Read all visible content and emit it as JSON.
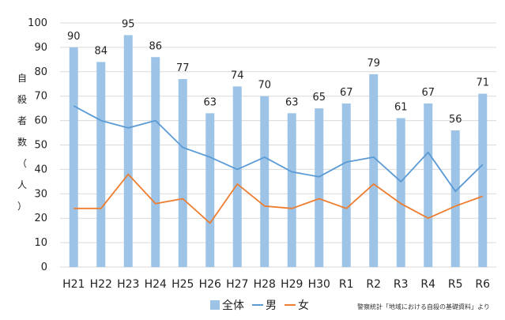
{
  "chart_data": {
    "type": "bar",
    "categories": [
      "H21",
      "H22",
      "H23",
      "H24",
      "H25",
      "H26",
      "H27",
      "H28",
      "H29",
      "H30",
      "R1",
      "R2",
      "R3",
      "R4",
      "R5",
      "R6"
    ],
    "series": [
      {
        "name": "全体",
        "kind": "bar",
        "color": "#9dc3e6",
        "values": [
          90,
          84,
          95,
          86,
          77,
          63,
          74,
          70,
          63,
          65,
          67,
          79,
          61,
          67,
          56,
          71
        ]
      },
      {
        "name": "男",
        "kind": "line",
        "color": "#5b9bd5",
        "values": [
          66,
          60,
          57,
          60,
          49,
          45,
          40,
          45,
          39,
          37,
          43,
          45,
          35,
          47,
          31,
          42
        ]
      },
      {
        "name": "女",
        "kind": "line",
        "color": "#ed7d31",
        "values": [
          24,
          24,
          38,
          26,
          28,
          18,
          34,
          25,
          24,
          28,
          24,
          34,
          26,
          20,
          25,
          29
        ]
      }
    ],
    "data_labels": [
      "90",
      "84",
      "95",
      "86",
      "77",
      "63",
      "74",
      "70",
      "63",
      "65",
      "67",
      "79",
      "61",
      "67",
      "56",
      "71"
    ],
    "ylabel": "自殺者数（人）",
    "ylim": [
      0,
      100
    ],
    "yticks": [
      0,
      10,
      20,
      30,
      40,
      50,
      60,
      70,
      80,
      90,
      100
    ],
    "grid": true,
    "legend": "bottom-center",
    "source_note": "警察統計「地域における自殺の基礎資料」より"
  }
}
